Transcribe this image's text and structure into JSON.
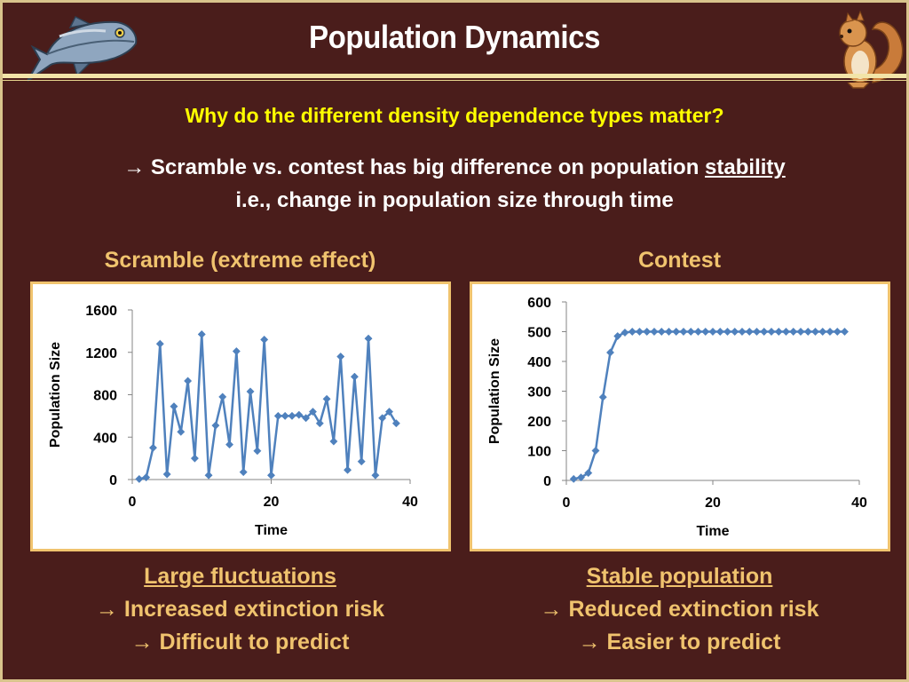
{
  "slide": {
    "title": "Population Dynamics",
    "question": "Why do the different density dependence types matter?",
    "arrow": "→",
    "line1_prefix": "Scramble vs. contest has big difference on population ",
    "line1_underlined": "stability",
    "line2": "i.e., change in population size through time",
    "left_heading": "Scramble (extreme effect)",
    "right_heading": "Contest",
    "left_notes": {
      "title": "Large fluctuations",
      "points": [
        "Increased extinction risk",
        "Difficult to predict"
      ]
    },
    "right_notes": {
      "title": "Stable population",
      "points": [
        "Reduced extinction risk",
        "Easier to predict"
      ]
    }
  },
  "colors": {
    "background": "#4a1d1b",
    "accent": "#f0c36e",
    "question": "#ffff00",
    "series": "#4f81bd"
  },
  "chart_data": [
    {
      "type": "line",
      "xlabel": "Time",
      "ylabel": "Population Size",
      "xlim": [
        0,
        40
      ],
      "ylim": [
        0,
        1600
      ],
      "xticks": [
        0,
        20,
        40
      ],
      "yticks": [
        0,
        400,
        800,
        1200,
        1600
      ],
      "x": [
        1,
        2,
        3,
        4,
        5,
        6,
        7,
        8,
        9,
        10,
        11,
        12,
        13,
        14,
        15,
        16,
        17,
        18,
        19,
        20,
        21,
        22,
        23,
        24,
        25,
        26,
        27,
        28,
        29,
        30,
        31,
        32,
        33,
        34,
        35,
        36,
        37,
        38
      ],
      "y": [
        5,
        20,
        300,
        1280,
        50,
        690,
        450,
        930,
        200,
        1370,
        40,
        510,
        780,
        330,
        1210,
        70,
        830,
        270,
        1320,
        40,
        600,
        600,
        600,
        610,
        580,
        640,
        530,
        760,
        360,
        1160,
        90,
        970,
        170,
        1330,
        40,
        580,
        640,
        530
      ]
    },
    {
      "type": "line",
      "xlabel": "Time",
      "ylabel": "Population Size",
      "xlim": [
        0,
        40
      ],
      "ylim": [
        0,
        600
      ],
      "xticks": [
        0,
        20,
        40
      ],
      "yticks": [
        0,
        100,
        200,
        300,
        400,
        500,
        600
      ],
      "x": [
        1,
        2,
        3,
        4,
        5,
        6,
        7,
        8,
        9,
        10,
        11,
        12,
        13,
        14,
        15,
        16,
        17,
        18,
        19,
        20,
        21,
        22,
        23,
        24,
        25,
        26,
        27,
        28,
        29,
        30,
        31,
        32,
        33,
        34,
        35,
        36,
        37,
        38
      ],
      "y": [
        5,
        10,
        25,
        100,
        280,
        430,
        485,
        497,
        500,
        500,
        500,
        500,
        500,
        500,
        500,
        500,
        500,
        500,
        500,
        500,
        500,
        500,
        500,
        500,
        500,
        500,
        500,
        500,
        500,
        500,
        500,
        500,
        500,
        500,
        500,
        500,
        500,
        500
      ]
    }
  ]
}
